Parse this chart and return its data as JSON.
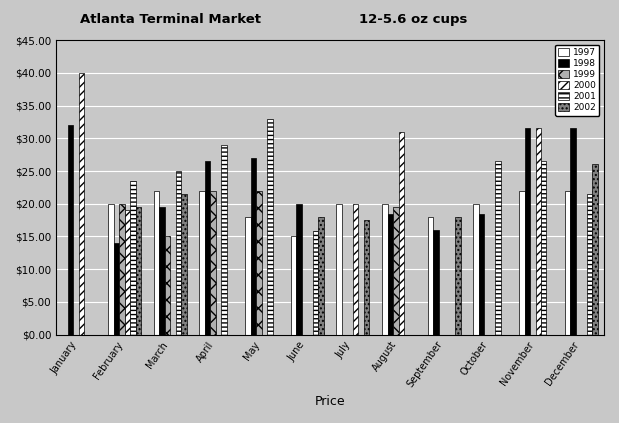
{
  "title_left": "Atlanta Terminal Market",
  "title_right": "12-5.6 oz cups",
  "xlabel": "Price",
  "months": [
    "January",
    "February",
    "March",
    "April",
    "May",
    "June",
    "July",
    "August",
    "September",
    "October",
    "November",
    "December"
  ],
  "years": [
    "1997",
    "1998",
    "1999",
    "2000",
    "2001",
    "2002"
  ],
  "values": {
    "1997": [
      0,
      20,
      22,
      22,
      18,
      15,
      20,
      20,
      18,
      20,
      22,
      22
    ],
    "1998": [
      32,
      14,
      19.5,
      26.5,
      27,
      20,
      0,
      18.5,
      16,
      18.5,
      31.5,
      31.5
    ],
    "1999": [
      0,
      20,
      15,
      22,
      22,
      0,
      0,
      19.5,
      0,
      0,
      0,
      0
    ],
    "2000": [
      40,
      19,
      0,
      0,
      0,
      0,
      20,
      31,
      0,
      0,
      31.5,
      0
    ],
    "2001": [
      0,
      23.5,
      25,
      29,
      33,
      15.8,
      0,
      0,
      0,
      26.5,
      26.5,
      21.5
    ],
    "2002": [
      0,
      19.5,
      21.5,
      0,
      0,
      18,
      17.5,
      0,
      18,
      0,
      0,
      26
    ]
  },
  "ylim": [
    0,
    45
  ],
  "yticks": [
    0,
    5,
    10,
    15,
    20,
    25,
    30,
    35,
    40,
    45
  ],
  "ytick_labels": [
    "$0.00",
    "$5.00",
    "$10.00",
    "$15.00",
    "$20.00",
    "$25.00",
    "$30.00",
    "$35.00",
    "$40.00",
    "$45.00"
  ],
  "plot_bg_color": "#c8c8c8",
  "fig_bg_color": "#c8c8c8",
  "bar_width": 0.12,
  "bar_props": {
    "1997": {
      "color": "#ffffff",
      "hatch": "",
      "edgecolor": "#000000"
    },
    "1998": {
      "color": "#000000",
      "hatch": "",
      "edgecolor": "#000000"
    },
    "1999": {
      "color": "#b0b0b0",
      "hatch": "xx",
      "edgecolor": "#000000"
    },
    "2000": {
      "color": "#ffffff",
      "hatch": "////",
      "edgecolor": "#000000"
    },
    "2001": {
      "color": "#ffffff",
      "hatch": "----",
      "edgecolor": "#000000"
    },
    "2002": {
      "color": "#808080",
      "hatch": "....",
      "edgecolor": "#000000"
    }
  }
}
